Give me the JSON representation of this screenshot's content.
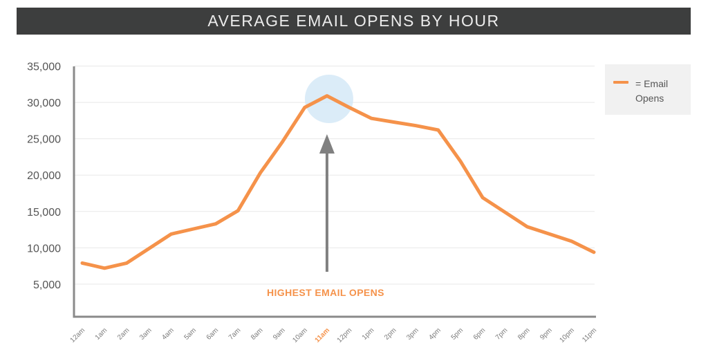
{
  "header": {
    "title": "AVERAGE EMAIL OPENS BY HOUR"
  },
  "legend": {
    "label": "= Email Opens",
    "swatch_icon": "orange-line-swatch-icon"
  },
  "annotation": {
    "text": "HIGHEST EMAIL OPENS",
    "target_category": "11am",
    "arrow_icon": "up-arrow-icon",
    "highlight_color": "#cfe6f5",
    "arrow_color": "#808080"
  },
  "colors": {
    "series": "#f5924a",
    "axis": "#8a8a8a",
    "grid": "#e8e8e8",
    "title_bar": "#3d3e3e",
    "highlight_tick": "#f5924a"
  },
  "chart_data": {
    "type": "line",
    "title": "AVERAGE EMAIL OPENS BY HOUR",
    "xlabel": "",
    "ylabel": "",
    "ylim": [
      0,
      35000
    ],
    "yticks": [
      "5,000",
      "10,000",
      "15,000",
      "20,000",
      "25,000",
      "30,000",
      "35,000"
    ],
    "ytick_values": [
      5000,
      10000,
      15000,
      20000,
      25000,
      30000,
      35000
    ],
    "grid": true,
    "legend_position": "top-right",
    "categories": [
      "12am",
      "1am",
      "2am",
      "3am",
      "4am",
      "5am",
      "6am",
      "7am",
      "8am",
      "9am",
      "10am",
      "11am",
      "12pm",
      "1pm",
      "2pm",
      "3pm",
      "4pm",
      "5pm",
      "6pm",
      "7pm",
      "8pm",
      "9pm",
      "10pm",
      "11pm"
    ],
    "highlighted_category": "11am",
    "series": [
      {
        "name": "Email Opens",
        "values": [
          7900,
          7200,
          7900,
          9900,
          11900,
          12600,
          13300,
          15100,
          20300,
          24600,
          29300,
          30900,
          29300,
          27800,
          27300,
          26800,
          26200,
          21900,
          16900,
          14900,
          12900,
          11900,
          10900,
          9400
        ]
      }
    ]
  }
}
